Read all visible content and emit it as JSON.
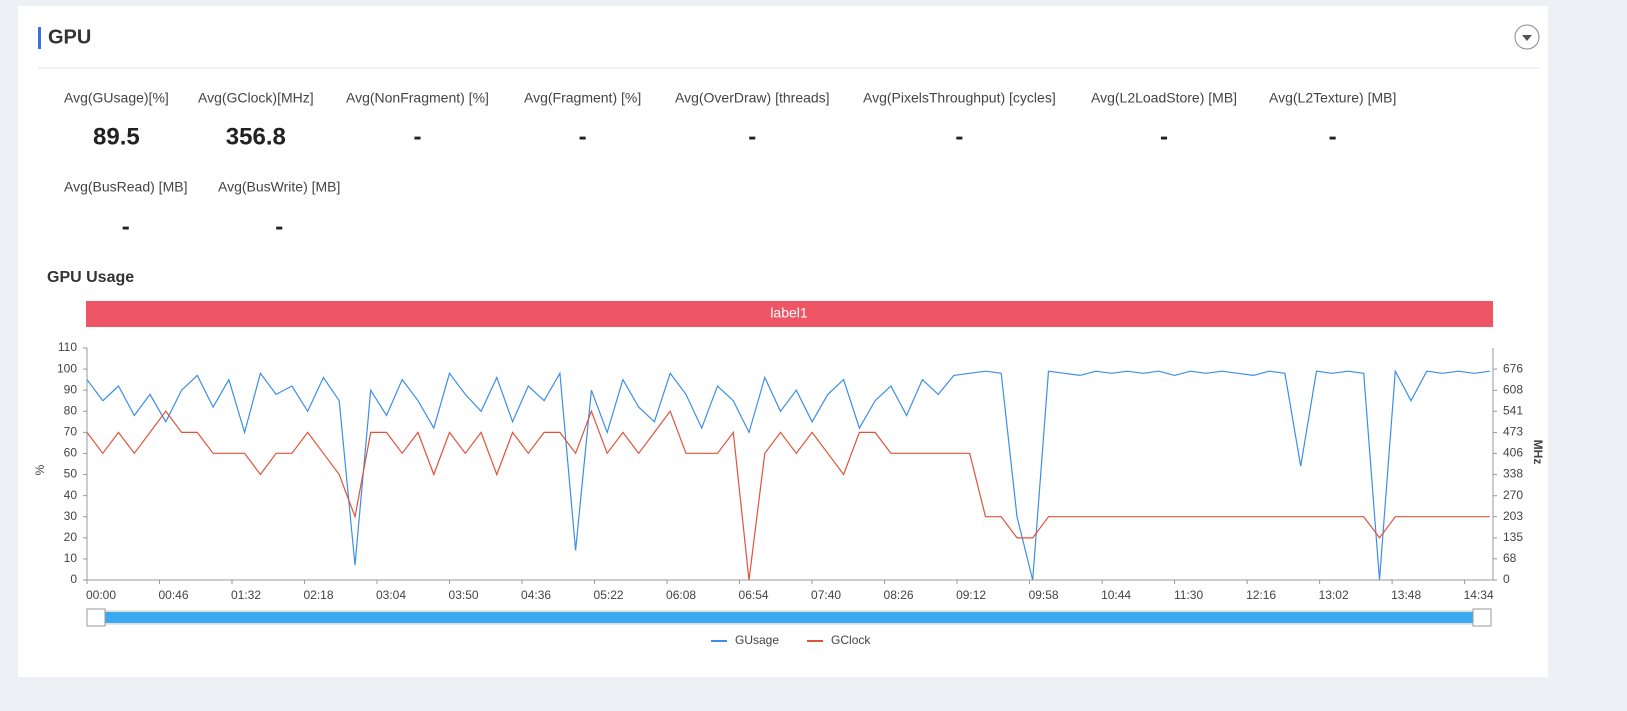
{
  "header": {
    "title": "GPU"
  },
  "metrics": [
    {
      "label": "Avg(GUsage)[%]",
      "value": "89.5"
    },
    {
      "label": "Avg(GClock)[MHz]",
      "value": "356.8"
    },
    {
      "label": "Avg(NonFragment) [%]",
      "value": "-"
    },
    {
      "label": "Avg(Fragment) [%]",
      "value": "-"
    },
    {
      "label": "Avg(OverDraw) [threads]",
      "value": "-"
    },
    {
      "label": "Avg(PixelsThroughput) [cycles]",
      "value": "-"
    },
    {
      "label": "Avg(L2LoadStore) [MB]",
      "value": "-"
    },
    {
      "label": "Avg(L2Texture) [MB]",
      "value": "-"
    },
    {
      "label": "Avg(BusRead) [MB]",
      "value": "-"
    },
    {
      "label": "Avg(BusWrite) [MB]",
      "value": "-"
    }
  ],
  "chart_data": {
    "type": "line",
    "title": "GPU Usage",
    "band_label": "label1",
    "ylabel": "%",
    "y2label": "MHz",
    "x": [
      0,
      10,
      20,
      30,
      40,
      50,
      60,
      70,
      80,
      90,
      100,
      110,
      120,
      130,
      140,
      150,
      160,
      170,
      180,
      190,
      200,
      210,
      220,
      230,
      240,
      250,
      260,
      270,
      280,
      290,
      300,
      310,
      320,
      330,
      340,
      350,
      360,
      370,
      380,
      390,
      400,
      410,
      420,
      430,
      440,
      450,
      460,
      470,
      480,
      490,
      500,
      510,
      520,
      530,
      540,
      550,
      560,
      570,
      580,
      590,
      600,
      610,
      620,
      630,
      640,
      650,
      660,
      670,
      680,
      690,
      700,
      710,
      720,
      730,
      740,
      750,
      760,
      770,
      780,
      790,
      800,
      810,
      820,
      830,
      840,
      850,
      860,
      870,
      880,
      890
    ],
    "xlim": [
      0,
      892
    ],
    "xticks": [
      {
        "value": 0,
        "label": "00:00"
      },
      {
        "value": 46,
        "label": "00:46"
      },
      {
        "value": 92,
        "label": "01:32"
      },
      {
        "value": 138,
        "label": "02:18"
      },
      {
        "value": 184,
        "label": "03:04"
      },
      {
        "value": 230,
        "label": "03:50"
      },
      {
        "value": 276,
        "label": "04:36"
      },
      {
        "value": 322,
        "label": "05:22"
      },
      {
        "value": 368,
        "label": "06:08"
      },
      {
        "value": 414,
        "label": "06:54"
      },
      {
        "value": 460,
        "label": "07:40"
      },
      {
        "value": 506,
        "label": "08:26"
      },
      {
        "value": 552,
        "label": "09:12"
      },
      {
        "value": 598,
        "label": "09:58"
      },
      {
        "value": 644,
        "label": "10:44"
      },
      {
        "value": 690,
        "label": "11:30"
      },
      {
        "value": 736,
        "label": "12:16"
      },
      {
        "value": 782,
        "label": "13:02"
      },
      {
        "value": 828,
        "label": "13:48"
      },
      {
        "value": 874,
        "label": "14:34"
      }
    ],
    "ylim": [
      0,
      110
    ],
    "yticks": [
      0,
      10,
      20,
      30,
      40,
      50,
      60,
      70,
      80,
      90,
      100,
      110
    ],
    "y2lim": [
      0,
      743.6
    ],
    "y2ticks": [
      0,
      68,
      135,
      203,
      270,
      338,
      406,
      473,
      541,
      608,
      676
    ],
    "series": [
      {
        "name": "GUsage",
        "color": "#3d8ee8",
        "values": [
          95,
          85,
          92,
          78,
          88,
          75,
          90,
          97,
          82,
          95,
          70,
          98,
          88,
          92,
          80,
          96,
          85,
          7,
          90,
          78,
          95,
          85,
          72,
          98,
          88,
          80,
          96,
          75,
          92,
          85,
          98,
          14,
          90,
          70,
          95,
          82,
          75,
          98,
          88,
          72,
          92,
          85,
          70,
          96,
          80,
          90,
          75,
          88,
          95,
          72,
          85,
          92,
          78,
          95,
          88,
          97,
          98,
          99,
          98,
          30,
          0,
          99,
          98,
          97,
          99,
          98,
          99,
          98,
          99,
          97,
          99,
          98,
          99,
          98,
          97,
          99,
          98,
          54,
          99,
          98,
          99,
          98,
          0,
          99,
          85,
          99,
          98,
          99,
          98,
          99
        ]
      },
      {
        "name": "GClock",
        "color": "#e0533a",
        "axis": "y2",
        "values": [
          473,
          406,
          473,
          406,
          473,
          541,
          473,
          473,
          406,
          406,
          406,
          338,
          406,
          406,
          473,
          406,
          338,
          203,
          473,
          473,
          406,
          473,
          338,
          473,
          406,
          473,
          338,
          473,
          406,
          473,
          473,
          406,
          541,
          406,
          473,
          406,
          473,
          541,
          406,
          406,
          406,
          473,
          0,
          406,
          473,
          406,
          473,
          406,
          338,
          473,
          473,
          406,
          406,
          406,
          406,
          406,
          406,
          203,
          203,
          135,
          135,
          203,
          203,
          203,
          203,
          203,
          203,
          203,
          203,
          203,
          203,
          203,
          203,
          203,
          203,
          203,
          203,
          203,
          203,
          203,
          203,
          203,
          135,
          203,
          203,
          203,
          203,
          203,
          203,
          203
        ]
      }
    ]
  }
}
